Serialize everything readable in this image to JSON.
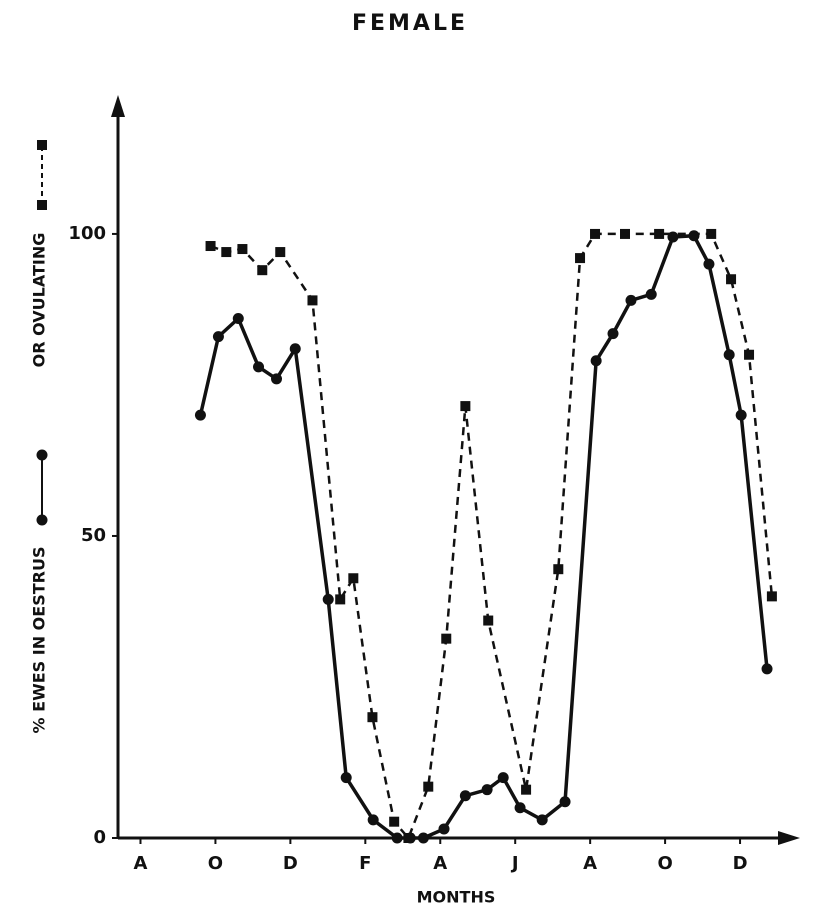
{
  "chart_data": {
    "type": "line",
    "title": "FEMALE",
    "x_label": "MONTHS",
    "xlim": [
      -0.6,
      17.6
    ],
    "ylim": [
      0,
      123
    ],
    "xticks": [
      {
        "value": 0,
        "label": "A"
      },
      {
        "value": 2,
        "label": "O"
      },
      {
        "value": 4,
        "label": "D"
      },
      {
        "value": 6,
        "label": "F"
      },
      {
        "value": 8,
        "label": "A"
      },
      {
        "value": 10,
        "label": "J"
      },
      {
        "value": 12,
        "label": "A"
      },
      {
        "value": 14,
        "label": "O"
      },
      {
        "value": 16,
        "label": "D"
      }
    ],
    "yticks": [
      0,
      50,
      100
    ],
    "series": [
      {
        "name": "% EWES IN OESTRUS",
        "color": "#111111",
        "style": "solid",
        "marker": "circle",
        "x": [
          1.6,
          2.08,
          2.61,
          3.15,
          3.63,
          4.13,
          5.01,
          5.49,
          6.21,
          6.85,
          7.2,
          7.55,
          8.1,
          8.67,
          9.25,
          9.68,
          10.13,
          10.72,
          11.33,
          12.16,
          12.61,
          13.09,
          13.63,
          14.21,
          14.77,
          15.17,
          15.71,
          16.03,
          16.72
        ],
        "values": [
          70,
          83,
          86,
          78,
          76,
          81,
          39.5,
          10,
          3,
          0,
          0,
          0,
          1.5,
          7,
          8,
          10,
          5,
          3,
          6,
          79,
          83.5,
          89,
          90,
          99.5,
          99.7,
          95,
          80,
          70,
          28
        ]
      },
      {
        "name": "OR OVULATING",
        "color": "#111111",
        "style": "dashed",
        "marker": "square",
        "x": [
          1.87,
          2.29,
          2.72,
          3.25,
          3.73,
          4.59,
          5.33,
          5.68,
          6.19,
          6.77,
          7.15,
          7.68,
          8.16,
          8.67,
          9.28,
          10.29,
          11.15,
          11.73,
          12.13,
          12.93,
          13.84,
          15.23,
          15.76,
          16.24,
          16.85
        ],
        "values": [
          98,
          97,
          97.5,
          94,
          97,
          89,
          39.5,
          43,
          20,
          2.7,
          0,
          8.5,
          33,
          71.5,
          36,
          8,
          44.5,
          96,
          100,
          100,
          100,
          100,
          92.5,
          80,
          40
        ]
      }
    ]
  }
}
